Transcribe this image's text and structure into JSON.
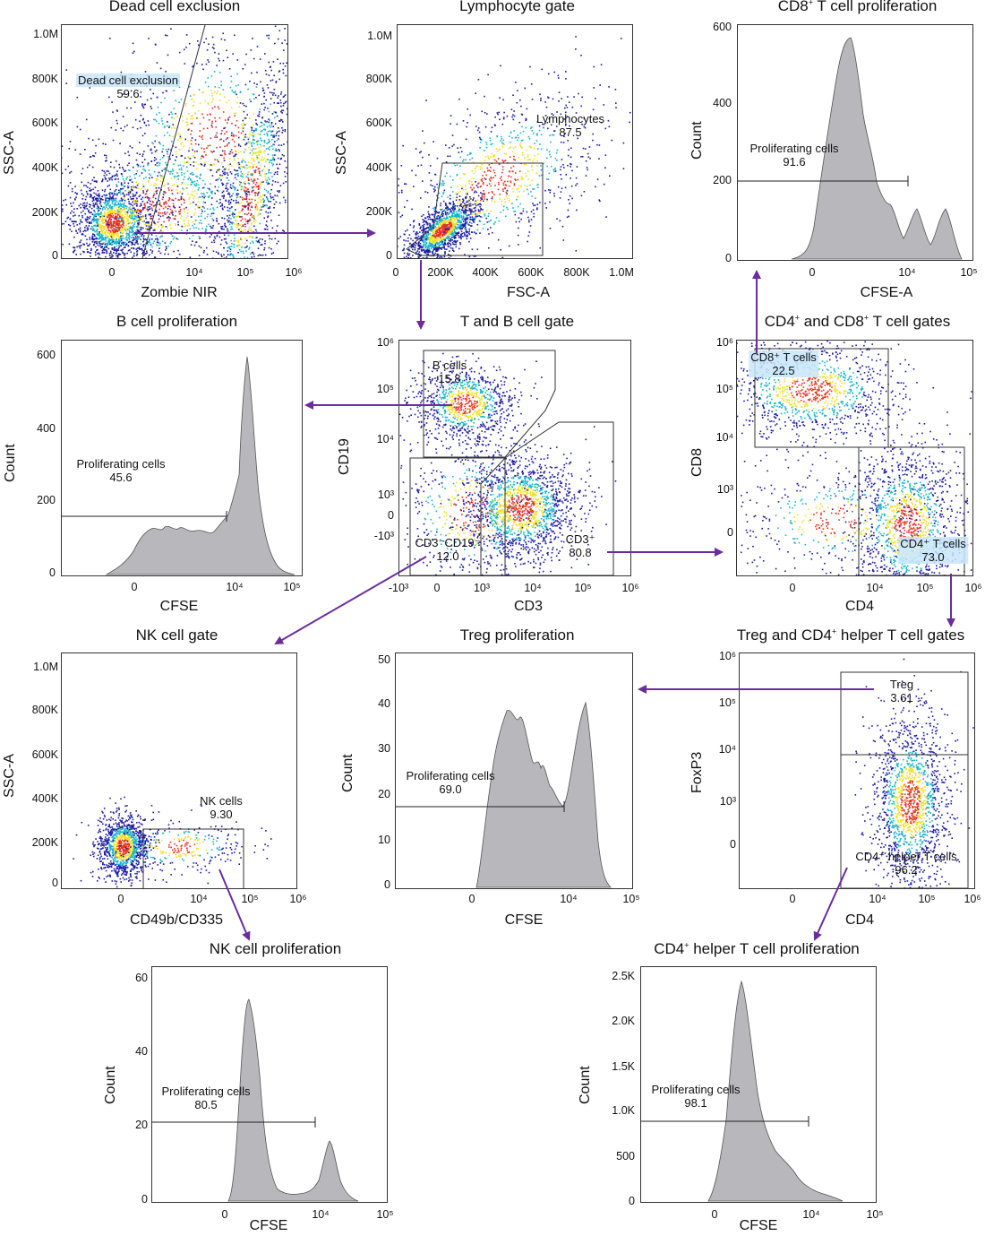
{
  "panels": {
    "dead": {
      "title": "Dead cell exclusion",
      "ylabel": "SSC-A",
      "xlabel": "Zombie NIR",
      "yticks": [
        "1.0M",
        "800K",
        "600K",
        "400K",
        "200K",
        "0"
      ],
      "xticks": [
        "0",
        "10⁴",
        "10⁵",
        "10⁶"
      ],
      "gate_name": "Dead cell exclusion",
      "gate_value": "59.6"
    },
    "lymph": {
      "title": "Lymphocyte gate",
      "ylabel": "SSC-A",
      "xlabel": "FSC-A",
      "yticks": [
        "1.0M",
        "800K",
        "600K",
        "400K",
        "200K",
        "0"
      ],
      "xticks": [
        "0",
        "200K",
        "400K",
        "600K",
        "800K",
        "1.0M"
      ],
      "gate_name": "Lymphocytes",
      "gate_value": "87.5"
    },
    "cd8prolif": {
      "title_pre": "CD8",
      "title_sup": "+",
      "title_post": " T cell proliferation",
      "ylabel": "Count",
      "xlabel": "CFSE-A",
      "yticks": [
        "600",
        "400",
        "200",
        "0"
      ],
      "xticks": [
        "0",
        "10⁴",
        "10⁵"
      ],
      "gate_name": "Proliferating cells",
      "gate_value": "91.6"
    },
    "bprolif": {
      "title": "B cell proliferation",
      "ylabel": "Count",
      "xlabel": "CFSE",
      "yticks": [
        "600",
        "400",
        "200",
        "0"
      ],
      "xticks": [
        "0",
        "10⁴",
        "10⁵"
      ],
      "gate_name": "Proliferating cells",
      "gate_value": "45.6"
    },
    "tb": {
      "title": "T and B cell gate",
      "ylabel": "CD19",
      "xlabel": "CD3",
      "yticks": [
        "10⁶",
        "10⁵",
        "10⁴",
        "10³",
        "0",
        "-10³"
      ],
      "xticks": [
        "-10³",
        "0",
        "10³",
        "10⁴",
        "10⁵",
        "10⁶"
      ],
      "gate_b_name": "B cells",
      "gate_b_value": "15.8",
      "gate_dn_name": "CD3⁻CD19⁻",
      "gate_dn_value": "12.0",
      "gate_t_name": "CD3⁺",
      "gate_t_value": "80.8"
    },
    "cd4cd8": {
      "title_pre": "CD4",
      "title_sup": "+",
      "title_mid": " and CD8",
      "title_sup2": "+",
      "title_post": " T cell gates",
      "ylabel": "CD8",
      "xlabel": "CD4",
      "yticks": [
        "10⁶",
        "10⁵",
        "10⁴",
        "10³",
        "0"
      ],
      "xticks": [
        "0",
        "10⁴",
        "10⁵",
        "10⁶"
      ],
      "gate_cd8_name": "CD8⁺ T cells",
      "gate_cd8_value": "22.5",
      "gate_cd4_name": "CD4⁺ T cells",
      "gate_cd4_value": "73.0"
    },
    "nk": {
      "title": "NK cell gate",
      "ylabel": "SSC-A",
      "xlabel": "CD49b/CD335",
      "yticks": [
        "1.0M",
        "800K",
        "600K",
        "400K",
        "200K",
        "0"
      ],
      "xticks": [
        "0",
        "10⁴",
        "10⁵",
        "10⁶"
      ],
      "gate_name": "NK cells",
      "gate_value": "9.30"
    },
    "tregprolif": {
      "title": "Treg proliferation",
      "ylabel": "Count",
      "xlabel": "CFSE",
      "yticks": [
        "50",
        "40",
        "30",
        "20",
        "10",
        "0"
      ],
      "xticks": [
        "0",
        "10⁴",
        "10⁵"
      ],
      "gate_name": "Proliferating cells",
      "gate_value": "69.0"
    },
    "treg": {
      "title_pre": "Treg and CD4",
      "title_sup": "+",
      "title_post": " helper T cell gates",
      "ylabel": "FoxP3",
      "xlabel": "CD4",
      "yticks": [
        "10⁶",
        "10⁵",
        "10⁴",
        "10³",
        "0"
      ],
      "xticks": [
        "0",
        "10⁴",
        "10⁵",
        "10⁶"
      ],
      "gate_treg_name": "Treg",
      "gate_treg_value": "3.61",
      "gate_th_name": "CD4⁺ helper T cells",
      "gate_th_value": "96.2"
    },
    "nkprolif": {
      "title": "NK cell proliferation",
      "ylabel": "Count",
      "xlabel": "CFSE",
      "yticks": [
        "60",
        "40",
        "20",
        "0"
      ],
      "xticks": [
        "0",
        "10⁴",
        "10⁵"
      ],
      "gate_name": "Proliferating cells",
      "gate_value": "80.5"
    },
    "thprolif": {
      "title_pre": "CD4",
      "title_sup": "+",
      "title_post": " helper T cell proliferation",
      "ylabel": "Count",
      "xlabel": "CFSE",
      "yticks": [
        "2.5K",
        "2.0K",
        "1.5K",
        "1.0K",
        "500",
        "0"
      ],
      "xticks": [
        "0",
        "10⁴",
        "10⁵"
      ],
      "gate_name": "Proliferating cells",
      "gate_value": "98.1"
    }
  },
  "colors": {
    "arrow": "#6a2c9e",
    "histogram_fill": "#b8b8bc",
    "histogram_stroke": "#555555",
    "gate": "#333333",
    "density_low": "#1a1aa0",
    "density_mid": "#19b4c8",
    "density_high": "#f0e020",
    "density_peak": "#e8301c"
  }
}
